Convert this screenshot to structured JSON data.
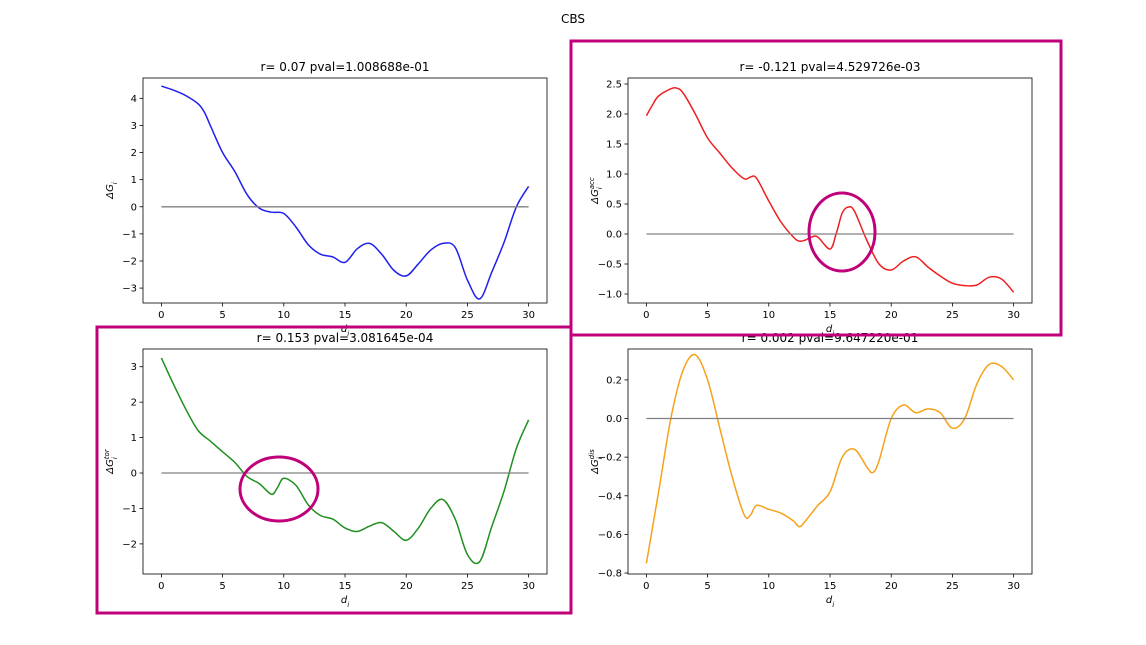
{
  "figure": {
    "suptitle": "CBS",
    "highlight_color": "#c0007a"
  },
  "chart_data": [
    {
      "type": "line",
      "title": "r= 0.07 pval=1.008688e-01",
      "xlabel": "d_i",
      "ylabel": "ΔG_i",
      "xlim": [
        -1.5,
        31.5
      ],
      "ylim": [
        -3.55,
        4.75
      ],
      "xticks": [
        0,
        5,
        10,
        15,
        20,
        25,
        30
      ],
      "yticks": [
        -3,
        -2,
        -1,
        0,
        1,
        2,
        3,
        4
      ],
      "grid": false,
      "series": [
        {
          "color": "#1f1fef",
          "x": [
            0,
            1,
            2,
            3,
            3.5,
            4,
            5,
            6,
            7,
            8,
            9,
            10,
            11,
            12,
            13,
            14,
            15,
            16,
            17,
            18,
            19,
            20,
            21,
            22,
            23,
            24,
            25,
            26,
            27,
            28,
            29,
            30
          ],
          "values": [
            4.45,
            4.3,
            4.1,
            3.8,
            3.5,
            3.0,
            2.0,
            1.3,
            0.45,
            -0.05,
            -0.2,
            -0.25,
            -0.75,
            -1.4,
            -1.75,
            -1.85,
            -2.05,
            -1.55,
            -1.35,
            -1.75,
            -2.35,
            -2.55,
            -2.1,
            -1.6,
            -1.35,
            -1.5,
            -2.7,
            -3.4,
            -2.4,
            -1.3,
            0.0,
            0.75
          ]
        },
        {
          "color": "#808080",
          "x": [
            0,
            30
          ],
          "values": [
            0,
            0
          ]
        }
      ]
    },
    {
      "type": "line",
      "title": "r= -0.121 pval=4.529726e-03",
      "xlabel": "d_i",
      "ylabel": "ΔG_i^acc",
      "xlim": [
        -1.5,
        31.5
      ],
      "ylim": [
        -1.15,
        2.6
      ],
      "xticks": [
        0,
        5,
        10,
        15,
        20,
        25,
        30
      ],
      "yticks": [
        -1.0,
        -0.5,
        0.0,
        0.5,
        1.0,
        1.5,
        2.0,
        2.5
      ],
      "grid": false,
      "series": [
        {
          "color": "#ef1f1f",
          "x": [
            0,
            0.5,
            1,
            2,
            2.5,
            3,
            4,
            5,
            6,
            7,
            8,
            8.5,
            9,
            10,
            11,
            12,
            12.5,
            13,
            13.5,
            14,
            15,
            15.5,
            16,
            16.5,
            17,
            18,
            19,
            20,
            21,
            22,
            23,
            24,
            25,
            26,
            27,
            28,
            29,
            30
          ],
          "values": [
            1.97,
            2.15,
            2.3,
            2.42,
            2.43,
            2.35,
            2.0,
            1.6,
            1.35,
            1.1,
            0.92,
            0.95,
            0.93,
            0.55,
            0.2,
            -0.05,
            -0.12,
            -0.1,
            -0.05,
            -0.05,
            -0.25,
            0.0,
            0.35,
            0.45,
            0.38,
            -0.1,
            -0.5,
            -0.6,
            -0.45,
            -0.38,
            -0.55,
            -0.7,
            -0.82,
            -0.86,
            -0.85,
            -0.72,
            -0.75,
            -0.97
          ]
        },
        {
          "color": "#808080",
          "x": [
            0,
            30
          ],
          "values": [
            0,
            0
          ]
        }
      ]
    },
    {
      "type": "line",
      "title": "r= 0.153 pval=3.081645e-04",
      "xlabel": "d_i",
      "ylabel": "ΔG_i^tor",
      "xlim": [
        -1.5,
        31.5
      ],
      "ylim": [
        -2.85,
        3.5
      ],
      "xticks": [
        0,
        5,
        10,
        15,
        20,
        25,
        30
      ],
      "yticks": [
        -2,
        -1,
        0,
        1,
        2,
        3
      ],
      "grid": false,
      "series": [
        {
          "color": "#1f8f1f",
          "x": [
            0,
            1,
            2,
            3,
            4,
            5,
            6,
            7,
            8,
            9,
            9.5,
            10,
            11,
            12,
            13,
            14,
            15,
            16,
            17,
            18,
            19,
            20,
            21,
            22,
            23,
            24,
            25,
            26,
            27,
            28,
            29,
            30
          ],
          "values": [
            3.25,
            2.5,
            1.8,
            1.2,
            0.9,
            0.6,
            0.3,
            -0.1,
            -0.3,
            -0.6,
            -0.4,
            -0.15,
            -0.35,
            -0.9,
            -1.2,
            -1.3,
            -1.55,
            -1.65,
            -1.5,
            -1.4,
            -1.65,
            -1.9,
            -1.55,
            -1.0,
            -0.75,
            -1.3,
            -2.3,
            -2.5,
            -1.5,
            -0.5,
            0.7,
            1.5
          ]
        },
        {
          "color": "#808080",
          "x": [
            0,
            30
          ],
          "values": [
            0,
            0
          ]
        }
      ]
    },
    {
      "type": "line",
      "title": "r= 0.002 pval=9.647220e-01",
      "xlabel": "d_i",
      "ylabel": "ΔG_i^dis",
      "xlim": [
        -1.5,
        31.5
      ],
      "ylim": [
        -0.805,
        0.36
      ],
      "xticks": [
        0,
        5,
        10,
        15,
        20,
        25,
        30
      ],
      "yticks": [
        -0.8,
        -0.6,
        -0.4,
        -0.2,
        0.0,
        0.2
      ],
      "grid": false,
      "series": [
        {
          "color": "#f5a21b",
          "x": [
            0,
            1,
            2,
            3,
            4,
            5,
            6,
            7,
            8,
            8.5,
            9,
            10,
            11,
            12,
            12.5,
            13,
            14,
            15,
            16,
            17,
            18,
            18.5,
            19,
            20,
            21,
            22,
            23,
            24,
            25,
            26,
            27,
            28,
            29,
            30
          ],
          "values": [
            -0.75,
            -0.38,
            0.0,
            0.25,
            0.33,
            0.2,
            -0.05,
            -0.3,
            -0.5,
            -0.5,
            -0.45,
            -0.47,
            -0.49,
            -0.53,
            -0.56,
            -0.53,
            -0.45,
            -0.38,
            -0.2,
            -0.16,
            -0.25,
            -0.28,
            -0.22,
            0.0,
            0.07,
            0.03,
            0.05,
            0.03,
            -0.05,
            0.0,
            0.18,
            0.28,
            0.27,
            0.2
          ]
        },
        {
          "color": "#808080",
          "x": [
            0,
            30
          ],
          "values": [
            0,
            0
          ]
        }
      ]
    }
  ]
}
